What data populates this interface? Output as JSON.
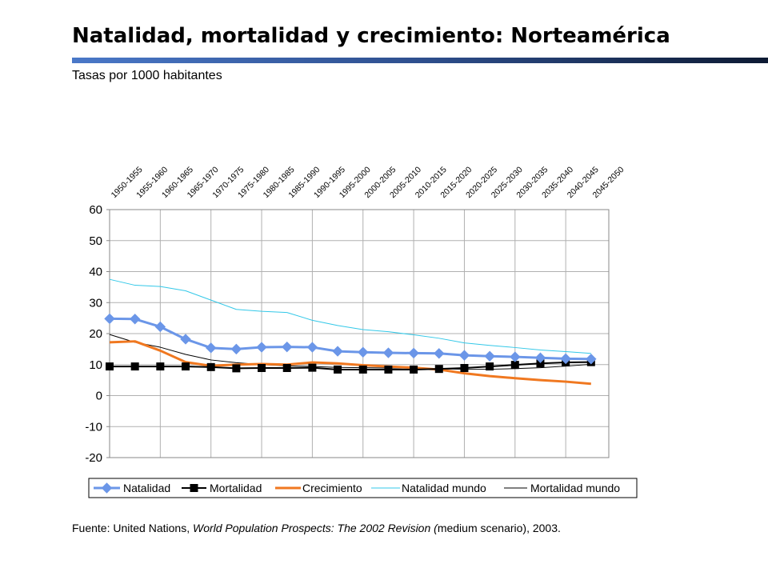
{
  "title": "Natalidad, mortalidad y crecimiento: Norteamérica",
  "subtitle": "Tasas por 1000 habitantes",
  "source": {
    "prefix": "Fuente: United Nations, ",
    "title_italic": "World Population Prospects: The 2002 Revision (",
    "middle": "medium scenario",
    "suffix": "), 2003."
  },
  "colors": {
    "title_bar": "#2e4f8e",
    "natalidad": "#6b96e8",
    "mortalidad": "#000000",
    "crecimiento": "#f07820",
    "natalidad_mundo": "#33c8e8",
    "mortalidad_mundo": "#000000"
  },
  "chart_data": {
    "type": "line",
    "categories": [
      "1950-1955",
      "1955-1960",
      "1960-1965",
      "1965-1970",
      "1970-1975",
      "1975-1980",
      "1980-1985",
      "1985-1990",
      "1990-1995",
      "1995-2000",
      "2000-2005",
      "2005-2010",
      "2010-2015",
      "2015-2020",
      "2020-2025",
      "2025-2030",
      "2030-2035",
      "2035-2040",
      "2040-2045",
      "2045-2050"
    ],
    "ylim": [
      -20,
      60
    ],
    "yticks": [
      "60",
      "50",
      "40",
      "30",
      "20",
      "10",
      "0",
      "-10",
      "-20"
    ],
    "grid": true,
    "legend_position": "bottom",
    "series": [
      {
        "name": "Natalidad",
        "marker": "diamond",
        "values": [
          24.8,
          24.7,
          22.2,
          18.2,
          15.4,
          15.0,
          15.6,
          15.7,
          15.6,
          14.3,
          14.0,
          13.8,
          13.7,
          13.6,
          13.0,
          12.7,
          12.5,
          12.2,
          11.9,
          11.8
        ]
      },
      {
        "name": "Mortalidad",
        "marker": "square",
        "values": [
          9.4,
          9.4,
          9.4,
          9.4,
          9.2,
          8.8,
          8.9,
          8.9,
          9.0,
          8.4,
          8.4,
          8.4,
          8.4,
          8.6,
          8.9,
          9.4,
          9.9,
          10.4,
          10.7,
          10.8
        ]
      },
      {
        "name": "Crecimiento",
        "marker": "none",
        "values": [
          17.2,
          17.5,
          14.5,
          10.8,
          9.6,
          10.0,
          10.2,
          10.0,
          10.7,
          10.4,
          9.8,
          9.4,
          9.0,
          8.4,
          7.2,
          6.3,
          5.6,
          5.0,
          4.5,
          3.8
        ]
      },
      {
        "name": "Natalidad mundo",
        "marker": "none",
        "values": [
          37.5,
          35.6,
          35.2,
          33.8,
          30.8,
          27.8,
          27.2,
          26.8,
          24.3,
          22.6,
          21.3,
          20.6,
          19.6,
          18.5,
          17.0,
          16.2,
          15.5,
          14.7,
          14.2,
          13.6
        ]
      },
      {
        "name": "Mortalidad mundo",
        "marker": "none",
        "values": [
          19.7,
          17.2,
          15.6,
          13.3,
          11.5,
          10.6,
          10.0,
          9.6,
          9.4,
          9.1,
          9.0,
          8.9,
          8.8,
          8.6,
          8.5,
          8.5,
          8.7,
          9.0,
          9.5,
          10.1
        ]
      }
    ]
  }
}
